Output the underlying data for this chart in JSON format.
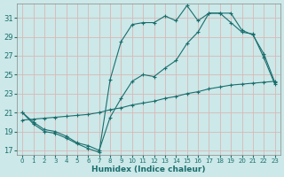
{
  "xlabel": "Humidex (Indice chaleur)",
  "xlim": [
    -0.5,
    23.5
  ],
  "ylim": [
    16.5,
    32.5
  ],
  "xticks": [
    0,
    1,
    2,
    3,
    4,
    5,
    6,
    7,
    8,
    9,
    10,
    11,
    12,
    13,
    14,
    15,
    16,
    17,
    18,
    19,
    20,
    21,
    22,
    23
  ],
  "yticks": [
    17,
    19,
    21,
    23,
    25,
    27,
    29,
    31
  ],
  "bg_color": "#cce8e8",
  "line_color": "#1a6e6e",
  "grid_color": "#b8d8d8",
  "line1_x": [
    0,
    1,
    2,
    3,
    4,
    5,
    6,
    7,
    8,
    9,
    10,
    11,
    12,
    13,
    14,
    15,
    16,
    17,
    18,
    19,
    20,
    21,
    22,
    23
  ],
  "line1_y": [
    21.0,
    19.8,
    19.0,
    18.8,
    18.3,
    17.7,
    17.2,
    16.8,
    24.5,
    28.5,
    30.3,
    30.5,
    30.5,
    31.2,
    30.7,
    32.3,
    30.7,
    31.5,
    31.5,
    30.5,
    29.5,
    29.3,
    26.8,
    24.0
  ],
  "line2_x": [
    0,
    1,
    2,
    3,
    4,
    5,
    6,
    7,
    8,
    9,
    10,
    11,
    12,
    13,
    14,
    15,
    16,
    17,
    18,
    19,
    20,
    21,
    22,
    23
  ],
  "line2_y": [
    21.0,
    20.0,
    19.2,
    19.0,
    18.5,
    17.8,
    17.5,
    17.0,
    20.5,
    22.5,
    24.3,
    25.0,
    24.8,
    25.7,
    26.5,
    28.3,
    29.5,
    31.5,
    31.5,
    31.5,
    29.7,
    29.2,
    27.2,
    24.2
  ],
  "line3_x": [
    0,
    1,
    2,
    3,
    4,
    5,
    6,
    7,
    8,
    9,
    10,
    11,
    12,
    13,
    14,
    15,
    16,
    17,
    18,
    19,
    20,
    21,
    22,
    23
  ],
  "line3_y": [
    20.2,
    20.3,
    20.4,
    20.5,
    20.6,
    20.7,
    20.8,
    21.0,
    21.3,
    21.5,
    21.8,
    22.0,
    22.2,
    22.5,
    22.7,
    23.0,
    23.2,
    23.5,
    23.7,
    23.9,
    24.0,
    24.1,
    24.2,
    24.3
  ]
}
